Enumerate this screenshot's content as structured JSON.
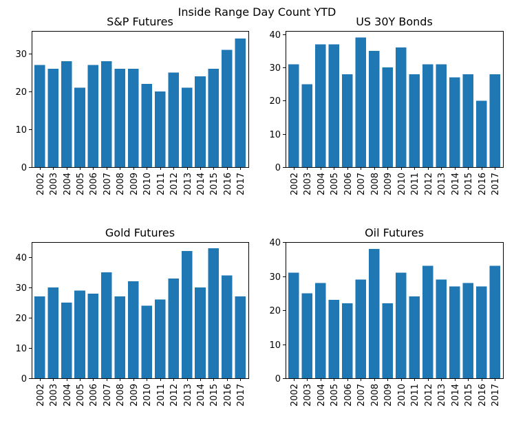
{
  "figure": {
    "title": "Inside Range Day Count YTD",
    "bar_color": "#1f77b4"
  },
  "chart_data": [
    {
      "type": "bar",
      "title": "S&P Futures",
      "categories": [
        "2002",
        "2003",
        "2004",
        "2005",
        "2006",
        "2007",
        "2008",
        "2009",
        "2010",
        "2011",
        "2012",
        "2013",
        "2014",
        "2015",
        "2016",
        "2017"
      ],
      "values": [
        27,
        26,
        28,
        21,
        27,
        28,
        26,
        26,
        22,
        20,
        25,
        21,
        24,
        26,
        31,
        34
      ],
      "ylim": [
        0,
        36
      ],
      "yticks": [
        0,
        10,
        20,
        30
      ],
      "xlabel": "",
      "ylabel": "",
      "grid": false
    },
    {
      "type": "bar",
      "title": "US 30Y Bonds",
      "categories": [
        "2002",
        "2003",
        "2004",
        "2005",
        "2006",
        "2007",
        "2008",
        "2009",
        "2010",
        "2011",
        "2012",
        "2013",
        "2014",
        "2015",
        "2016",
        "2017"
      ],
      "values": [
        31,
        25,
        37,
        37,
        28,
        39,
        35,
        30,
        36,
        28,
        31,
        31,
        27,
        28,
        20,
        28
      ],
      "ylim": [
        0,
        41
      ],
      "yticks": [
        0,
        10,
        20,
        30,
        40
      ],
      "xlabel": "",
      "ylabel": "",
      "grid": false
    },
    {
      "type": "bar",
      "title": "Gold Futures",
      "categories": [
        "2002",
        "2003",
        "2004",
        "2005",
        "2006",
        "2007",
        "2008",
        "2009",
        "2010",
        "2011",
        "2012",
        "2013",
        "2014",
        "2015",
        "2016",
        "2017"
      ],
      "values": [
        27,
        30,
        25,
        29,
        28,
        35,
        27,
        32,
        24,
        26,
        33,
        42,
        30,
        43,
        34,
        27
      ],
      "ylim": [
        0,
        45
      ],
      "yticks": [
        0,
        10,
        20,
        30,
        40
      ],
      "xlabel": "",
      "ylabel": "",
      "grid": false
    },
    {
      "type": "bar",
      "title": "Oil Futures",
      "categories": [
        "2002",
        "2003",
        "2004",
        "2005",
        "2006",
        "2007",
        "2008",
        "2009",
        "2010",
        "2011",
        "2012",
        "2013",
        "2014",
        "2015",
        "2016",
        "2017"
      ],
      "values": [
        31,
        25,
        28,
        23,
        22,
        29,
        38,
        22,
        31,
        24,
        33,
        29,
        27,
        28,
        27,
        33
      ],
      "ylim": [
        0,
        40
      ],
      "yticks": [
        0,
        10,
        20,
        30,
        40
      ],
      "xlabel": "",
      "ylabel": "",
      "grid": false
    }
  ]
}
